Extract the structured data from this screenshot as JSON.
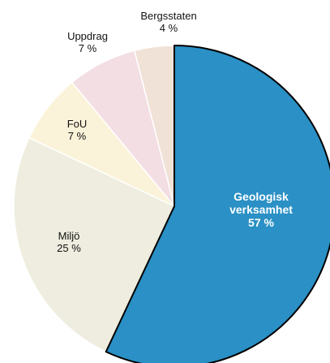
{
  "chart_data": {
    "type": "pie",
    "categories": [
      "Geologisk verksamhet",
      "Miljö",
      "FoU",
      "Uppdrag",
      "Bergsstaten"
    ],
    "values": [
      57,
      25,
      7,
      7,
      4
    ],
    "value_labels": [
      "57 %",
      "25 %",
      "7 %",
      "7 %",
      "4 %"
    ],
    "colors": [
      "#2a90c5",
      "#eeeddf",
      "#fbf3d9",
      "#f3dee4",
      "#f1e2d7"
    ]
  }
}
